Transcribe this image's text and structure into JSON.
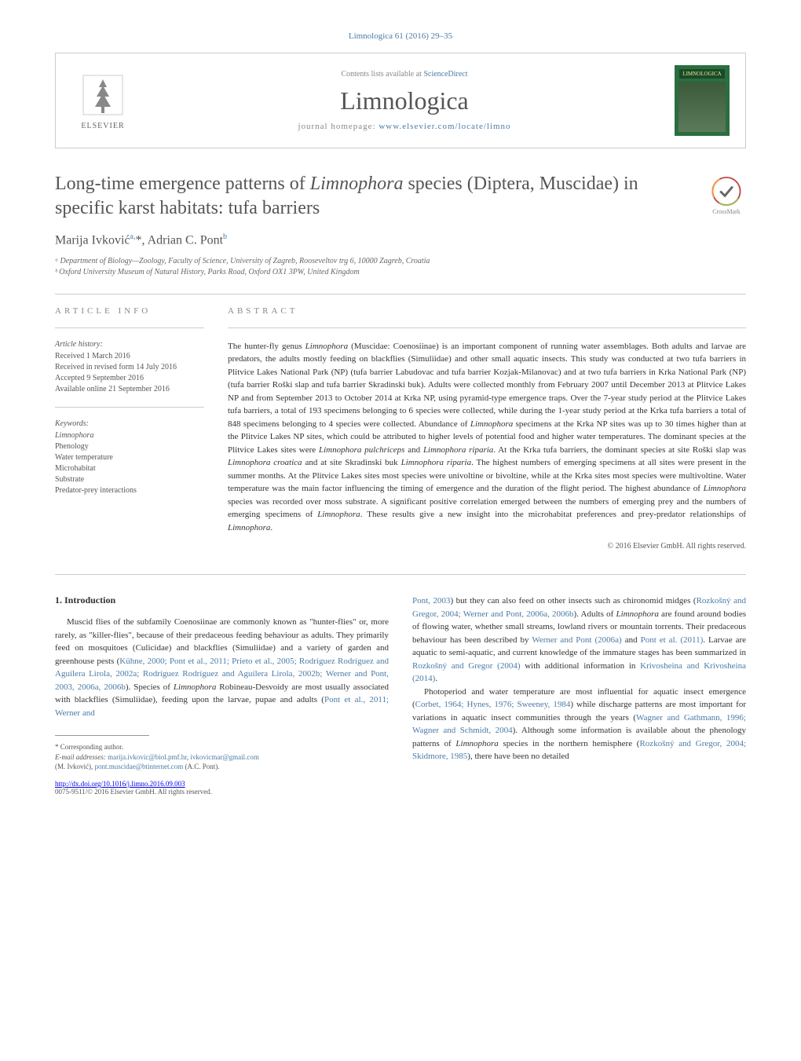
{
  "header": {
    "citation": "Limnologica 61 (2016) 29–35",
    "contents_prefix": "Contents lists available at ",
    "contents_link": "ScienceDirect",
    "journal_name": "Limnologica",
    "homepage_prefix": "journal homepage: ",
    "homepage_link": "www.elsevier.com/locate/limno",
    "publisher": "ELSEVIER",
    "cover_title": "LIMNOLOGICA"
  },
  "article": {
    "title": "Long-time emergence patterns of <em>Limnophora</em> species (Diptera, Muscidae) in specific karst habitats: tufa barriers",
    "crossmark_label": "CrossMark",
    "authors_html": "Marija Ivković<sup>a,</sup>*, Adrian C. Pont<sup>b</sup>",
    "affiliations": [
      "ᵃ Department of Biology—Zoology, Faculty of Science, University of Zagreb, Rooseveltov trg 6, 10000 Zagreb, Croatia",
      "ᵇ Oxford University Museum of Natural History, Parks Road, Oxford OX1 3PW, United Kingdom"
    ]
  },
  "article_info": {
    "heading": "article info",
    "history_heading": "Article history:",
    "history": [
      "Received 1 March 2016",
      "Received in revised form 14 July 2016",
      "Accepted 9 September 2016",
      "Available online 21 September 2016"
    ],
    "keywords_heading": "Keywords:",
    "keywords": [
      "Limnophora",
      "Phenology",
      "Water temperature",
      "Microhabitat",
      "Substrate",
      "Predator-prey interactions"
    ]
  },
  "abstract": {
    "heading": "abstract",
    "text": "The hunter-fly genus <em>Limnophora</em> (Muscidae: Coenosiinae) is an important component of running water assemblages. Both adults and larvae are predators, the adults mostly feeding on blackflies (Simuliidae) and other small aquatic insects. This study was conducted at two tufa barriers in Plitvice Lakes National Park (NP) (tufa barrier Labudovac and tufa barrier Kozjak-Milanovac) and at two tufa barriers in Krka National Park (NP) (tufa barrier Roški slap and tufa barrier Skradinski buk). Adults were collected monthly from February 2007 until December 2013 at Plitvice Lakes NP and from September 2013 to October 2014 at Krka NP, using pyramid-type emergence traps. Over the 7-year study period at the Plitvice Lakes tufa barriers, a total of 193 specimens belonging to 6 species were collected, while during the 1-year study period at the Krka tufa barriers a total of 848 specimens belonging to 4 species were collected. Abundance of <em>Limnophora</em> specimens at the Krka NP sites was up to 30 times higher than at the Plitvice Lakes NP sites, which could be attributed to higher levels of potential food and higher water temperatures. The dominant species at the Plitvice Lakes sites were <em>Limnophora pulchriceps</em> and <em>Limnophora riparia</em>. At the Krka tufa barriers, the dominant species at site Roški slap was <em>Limnophora croatica</em> and at site Skradinski buk <em>Limnophora riparia</em>. The highest numbers of emerging specimens at all sites were present in the summer months. At the Plitvice Lakes sites most species were univoltine or bivoltine, while at the Krka sites most species were multivoltine. Water temperature was the main factor influencing the timing of emergence and the duration of the flight period. The highest abundance of <em>Limnophora</em> species was recorded over moss substrate. A significant positive correlation emerged between the numbers of emerging prey and the numbers of emerging specimens of <em>Limnophora</em>. These results give a new insight into the microhabitat preferences and prey-predator relationships of <em>Limnophora</em>.",
    "copyright": "© 2016 Elsevier GmbH. All rights reserved."
  },
  "intro": {
    "heading": "1. Introduction",
    "col1_html": "Muscid flies of the subfamily Coenosiinae are commonly known as \"hunter-flies\" or, more rarely, as \"killer-flies\", because of their predaceous feeding behaviour as adults. They primarily feed on mosquitoes (Culicidae) and blackflies (Simuliidae) and a variety of garden and greenhouse pests (<a href=\"#\">Kühne, 2000; Pont et al., 2011; Prieto et al., 2005; Rodríguez Rodríguez and Aguilera Lirola, 2002a; Rodríguez Rodríguez and Aguilera Lirola, 2002b; Werner and Pont, 2003, 2006a, 2006b</a>). Species of <em>Limnophora</em> Robineau-Desvoidy are most usually associated with blackflies (Simuliidae), feeding upon the larvae, pupae and adults (<a href=\"#\">Pont et al., 2011; Werner and</a>",
    "col2_html": "<a href=\"#\">Pont, 2003</a>) but they can also feed on other insects such as chironomid midges (<a href=\"#\">Rozkošný and Gregor, 2004; Werner and Pont, 2006a, 2006b</a>). Adults of <em>Limnophora</em> are found around bodies of flowing water, whether small streams, lowland rivers or mountain torrents. Their predaceous behaviour has been described by <a href=\"#\">Werner and Pont (2006a)</a> and <a href=\"#\">Pont et al. (2011)</a>. Larvae are aquatic to semi-aquatic, and current knowledge of the immature stages has been summarized in <a href=\"#\">Rozkošný and Gregor (2004)</a> with additional information in <a href=\"#\">Krivosheina and Krivosheina (2014)</a>.",
    "col2_p2_html": "Photoperiod and water temperature are most influential for aquatic insect emergence (<a href=\"#\">Corbet, 1964; Hynes, 1976; Sweeney, 1984</a>) while discharge patterns are most important for variations in aquatic insect communities through the years (<a href=\"#\">Wagner and Gathmann, 1996; Wagner and Schmidt, 2004</a>). Although some information is available about the phenology patterns of <em>Limnophora</em> species in the northern hemisphere (<a href=\"#\">Rozkošný and Gregor, 2004; Skidmore, 1985</a>), there have been no detailed"
  },
  "footer": {
    "corresponding": "* Corresponding author.",
    "email_label": "E-mail addresses: ",
    "email1": "marija.ivkovic@biol.pmf.hr",
    "email2": "ivkovicmar@gmail.com",
    "email1_author": "(M. Ivković), ",
    "email3": "pont.muscidae@btinternet.com",
    "email3_author": " (A.C. Pont).",
    "doi": "http://dx.doi.org/10.1016/j.limno.2016.09.003",
    "issn": "0075-9511/© 2016 Elsevier GmbH. All rights reserved."
  },
  "colors": {
    "link": "#4a7ba6",
    "text": "#333333",
    "muted": "#888888",
    "border": "#cccccc",
    "orange": "#e8762d"
  }
}
